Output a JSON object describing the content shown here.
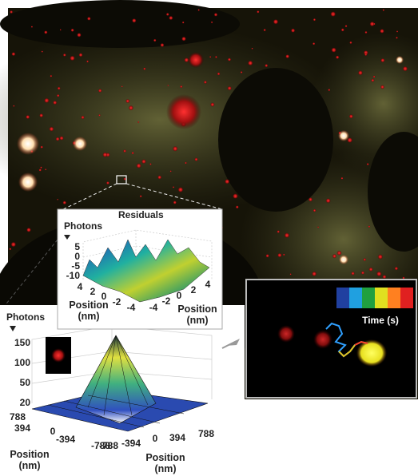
{
  "residuals_panel": {
    "title": "Residuals",
    "z_label": "Photons",
    "z_ticks": [
      5,
      0,
      -5,
      -10
    ],
    "x_ticks": [
      4,
      2,
      0,
      -2,
      -4
    ],
    "y_ticks": [
      -4,
      -2,
      0,
      2,
      4
    ],
    "x_label": "Position (nm)",
    "y_label": "Position (nm)"
  },
  "photons_panel": {
    "z_label": "Photons",
    "z_ticks": [
      150,
      100,
      50,
      20
    ],
    "x_ticks": [
      788,
      394,
      0,
      -394,
      -788
    ],
    "y_ticks": [
      -788,
      -394,
      0,
      394,
      788
    ],
    "x_label": "Position (nm)",
    "y_label": "Position (nm)"
  },
  "trajectory_panel": {
    "legend_label": "Time (s)"
  }
}
